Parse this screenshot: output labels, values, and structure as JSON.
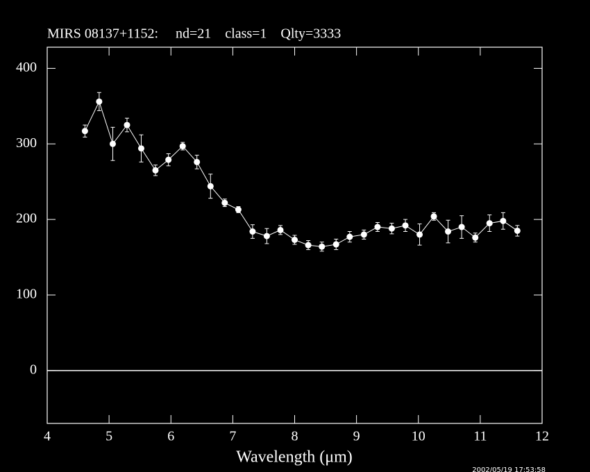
{
  "chart_data": {
    "type": "line",
    "title": "MIRS 08137+1152:     nd=21    class=1    Qlty=3333",
    "xlabel": "Wavelength (μm)",
    "timestamp": "2002/05/19 17:53:58",
    "color": "#ffffff",
    "x": [
      4.61,
      4.84,
      5.06,
      5.29,
      5.52,
      5.75,
      5.96,
      6.19,
      6.42,
      6.64,
      6.87,
      7.09,
      7.32,
      7.55,
      7.77,
      8.0,
      8.22,
      8.44,
      8.67,
      8.89,
      9.12,
      9.34,
      9.57,
      9.79,
      10.02,
      10.25,
      10.48,
      10.7,
      10.92,
      11.15,
      11.37,
      11.6
    ],
    "values": [
      317,
      356,
      300,
      325,
      294,
      265,
      279,
      297,
      276,
      244,
      222,
      213,
      184,
      178,
      186,
      173,
      166,
      164,
      167,
      177,
      180,
      190,
      188,
      192,
      180,
      204,
      184,
      190,
      176,
      195,
      198,
      185
    ],
    "errors": [
      8,
      12,
      22,
      9,
      18,
      7,
      8,
      5,
      9,
      16,
      5,
      4,
      9,
      10,
      6,
      6,
      6,
      6,
      7,
      7,
      6,
      6,
      7,
      8,
      14,
      5,
      15,
      15,
      6,
      11,
      11,
      7
    ],
    "xlim": [
      4,
      12
    ],
    "xticks": [
      4,
      5,
      6,
      7,
      8,
      9,
      10,
      11,
      12
    ],
    "ylim": [
      -70,
      428
    ],
    "yticks": [
      0,
      100,
      200,
      300,
      400
    ]
  }
}
